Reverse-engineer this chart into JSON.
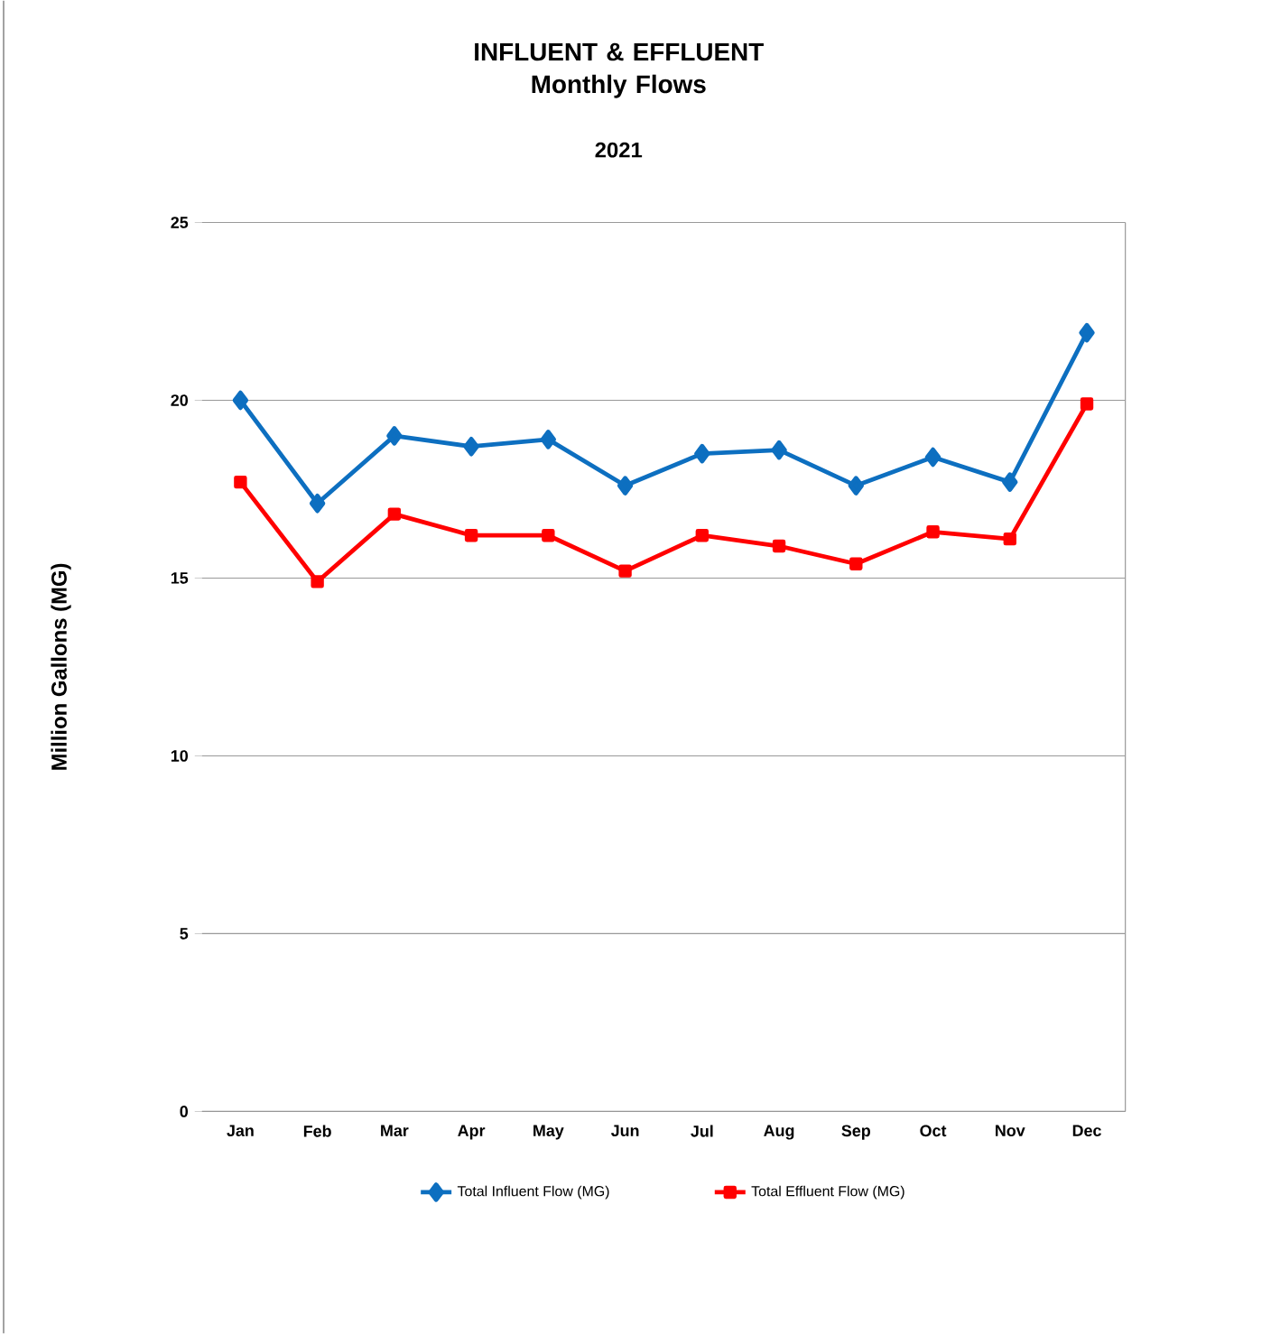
{
  "chart_data": {
    "type": "line",
    "title": "INFLUENT & EFFLUENT Monthly Flows",
    "subtitle": "2021",
    "ylabel": "Million Gallons (MG)",
    "categories": [
      "Jan",
      "Feb",
      "Mar",
      "Apr",
      "May",
      "Jun",
      "Jul",
      "Aug",
      "Sep",
      "Oct",
      "Nov",
      "Dec"
    ],
    "series": [
      {
        "name": "Total Influent Flow (MG)",
        "color": "#0d6fc0",
        "marker": "diamond",
        "values": [
          20.0,
          17.1,
          19.0,
          18.7,
          18.9,
          17.6,
          18.5,
          18.6,
          17.6,
          18.4,
          17.7,
          21.9
        ]
      },
      {
        "name": "Total  Effluent  Flow (MG)",
        "color": "#ff0000",
        "marker": "square",
        "values": [
          17.7,
          14.9,
          16.8,
          16.2,
          16.2,
          15.2,
          16.2,
          15.9,
          15.4,
          16.3,
          16.1,
          19.9
        ]
      }
    ],
    "ylim": [
      0,
      25
    ],
    "yticks": [
      0,
      5,
      10,
      15,
      20,
      25
    ],
    "grid": "y",
    "legend": "bottom",
    "line_style": "solid"
  }
}
